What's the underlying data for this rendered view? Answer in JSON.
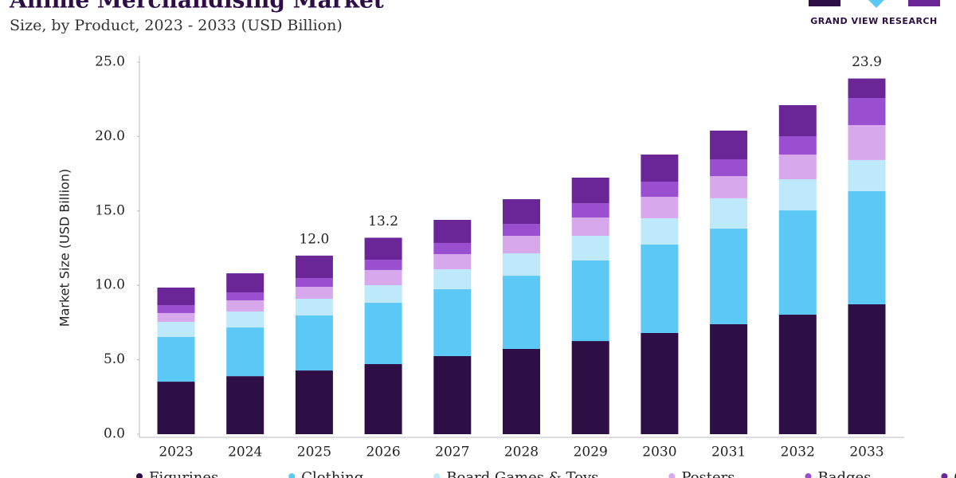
{
  "brand": "GRAND VIEW RESEARCH",
  "chart_data": {
    "type": "stacked_bar",
    "title": "Anime Merchandising Market",
    "subtitle": "Size, by Product, 2023 - 2033 (USD Billion)",
    "y_label": "Market Size (USD Billion)",
    "categories": [
      "2023",
      "2024",
      "2025",
      "2026",
      "2027",
      "2028",
      "2029",
      "2030",
      "2031",
      "2032",
      "2033"
    ],
    "series": [
      {
        "name": "Figurines",
        "color": "#2e0f45",
        "values": [
          3.53,
          3.9,
          4.28,
          4.71,
          5.25,
          5.73,
          6.26,
          6.8,
          7.39,
          8.03,
          8.73
        ]
      },
      {
        "name": "Clothing",
        "color": "#5bc8f5",
        "values": [
          3.0,
          3.27,
          3.7,
          4.12,
          4.49,
          4.92,
          5.41,
          5.94,
          6.42,
          7.01,
          7.6
        ]
      },
      {
        "name": "Board Games & Toys",
        "color": "#bde9fa",
        "values": [
          1.02,
          1.07,
          1.12,
          1.18,
          1.34,
          1.5,
          1.66,
          1.77,
          2.04,
          2.09,
          2.09
        ]
      },
      {
        "name": "Posters",
        "color": "#d7a9ec",
        "values": [
          0.59,
          0.75,
          0.8,
          1.02,
          1.02,
          1.18,
          1.23,
          1.44,
          1.49,
          1.66,
          2.35
        ]
      },
      {
        "name": "Badges",
        "color": "#9a4fd0",
        "values": [
          0.53,
          0.54,
          0.59,
          0.69,
          0.75,
          0.8,
          0.96,
          1.02,
          1.13,
          1.23,
          1.82
        ]
      },
      {
        "name": "Others",
        "color": "#6a2597",
        "values": [
          1.18,
          1.28,
          1.51,
          1.48,
          1.55,
          1.66,
          1.72,
          1.82,
          1.93,
          2.09,
          1.31
        ]
      }
    ],
    "annotations": [
      {
        "x": "2025",
        "label": "12.0"
      },
      {
        "x": "2026",
        "label": "13.2"
      },
      {
        "x": "2033",
        "label": "23.9"
      }
    ],
    "ylim": [
      0,
      25
    ],
    "yticks": [
      {
        "value": 0,
        "label": "0.0"
      },
      {
        "value": 5,
        "label": "5.0"
      },
      {
        "value": 10,
        "label": "10.0"
      },
      {
        "value": 15,
        "label": "15.0"
      },
      {
        "value": 20,
        "label": "20.0"
      },
      {
        "value": 25,
        "label": "25.0"
      }
    ],
    "legend": "bottom"
  }
}
